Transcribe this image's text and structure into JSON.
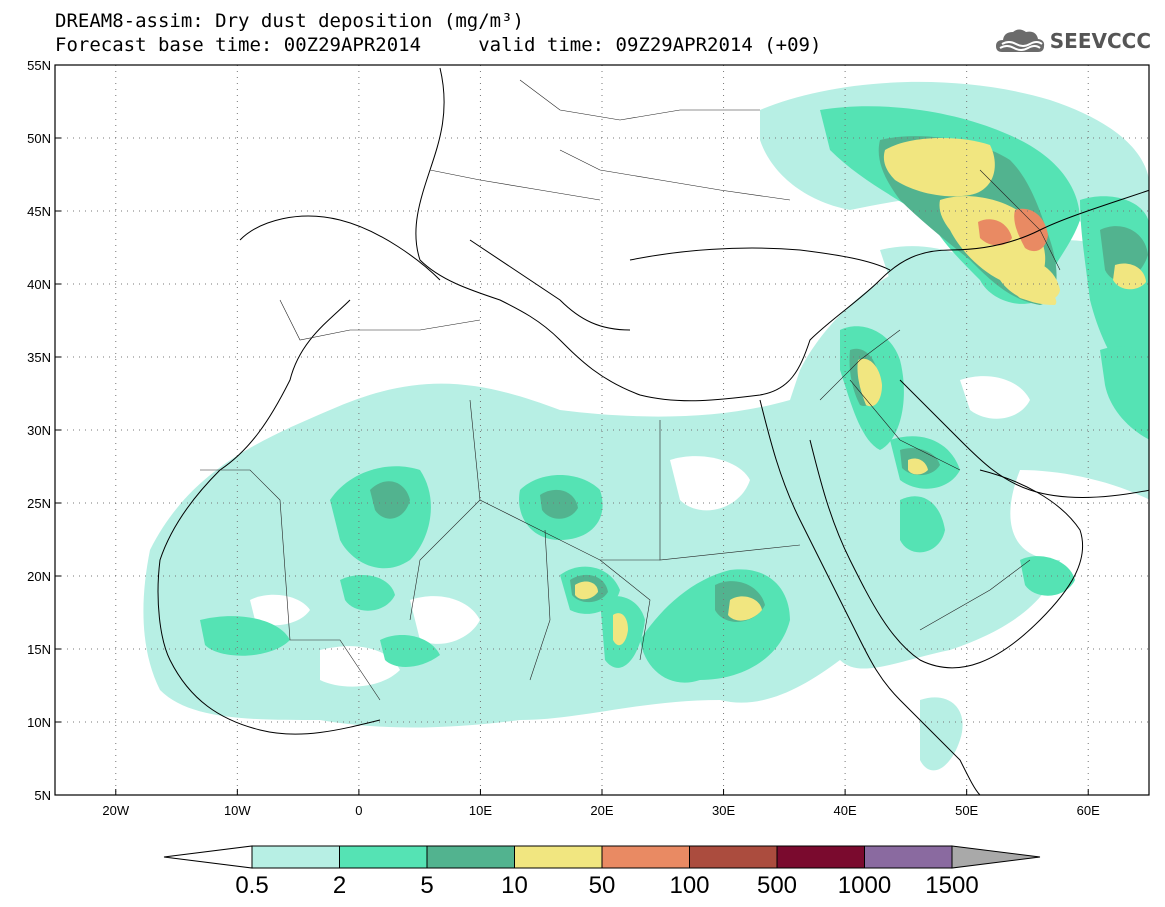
{
  "title": {
    "line1": "DREAM8-assim: Dry dust deposition (mg/m³)",
    "line2": "Forecast base time: 00Z29APR2014     valid time: 09Z29APR2014 (+09)"
  },
  "brand": {
    "name": "SEEVCCC",
    "icon": "cloud-logo-icon"
  },
  "map": {
    "lat_labels": [
      "55N",
      "50N",
      "45N",
      "40N",
      "35N",
      "30N",
      "25N",
      "20N",
      "15N",
      "10N",
      "5N"
    ],
    "lon_labels": [
      "20W",
      "10W",
      "0",
      "10E",
      "20E",
      "30E",
      "40E",
      "50E",
      "60E"
    ],
    "lon_range": [
      -25,
      65
    ],
    "lat_range": [
      5,
      55
    ],
    "grid": "dotted"
  },
  "colorbar": {
    "labels": [
      "0.5",
      "2",
      "5",
      "10",
      "50",
      "100",
      "500",
      "1000",
      "1500"
    ],
    "colors": [
      "#b7efe4",
      "#55e3b4",
      "#52b38f",
      "#f1e680",
      "#e98a63",
      "#ab4c3e",
      "#7a0a2e",
      "#8a6aa0"
    ],
    "under_color": "#ffffff",
    "over_color": "#a9a9a9"
  },
  "colors": {
    "level1": "#b7efe4",
    "level2": "#55e3b4",
    "level3": "#52b38f",
    "level4": "#f1e680",
    "level5": "#e98a63"
  }
}
